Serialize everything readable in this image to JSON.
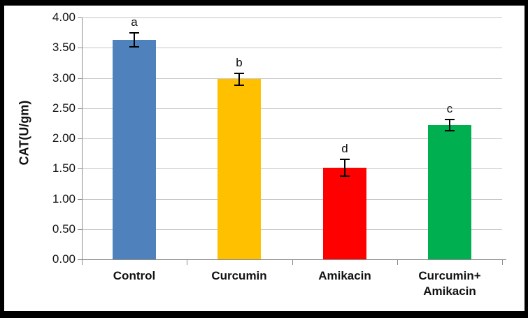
{
  "chart_data": {
    "type": "bar",
    "title": "",
    "xlabel": "",
    "ylabel": "CAT(U/gm)",
    "ylim": [
      0,
      4.0
    ],
    "grid": true,
    "legend": "none",
    "ytick_values": [
      0,
      0.5,
      1.0,
      1.5,
      2.0,
      2.5,
      3.0,
      3.5,
      4.0
    ],
    "ytick_labels": [
      "0.00",
      "0.50",
      "1.00",
      "1.50",
      "2.00",
      "2.50",
      "3.00",
      "3.50",
      "4.00"
    ],
    "categories": [
      "Control",
      "Curcumin",
      "Amikacin",
      "Curcumin+ Amikacin"
    ],
    "category_label_lines": [
      [
        "Control"
      ],
      [
        "Curcumin"
      ],
      [
        "Amikacin"
      ],
      [
        "Curcumin+",
        "Amikacin"
      ]
    ],
    "values": [
      3.63,
      2.98,
      1.51,
      2.22
    ],
    "error_bars": [
      0.12,
      0.1,
      0.14,
      0.09
    ],
    "significance_letters": [
      "a",
      "b",
      "d",
      "c"
    ],
    "bar_colors": [
      "#4f81bd",
      "#ffc000",
      "#ff0000",
      "#00b050"
    ],
    "colors": {
      "gridline": "#c6c6c6",
      "axis": "#8c8c8c",
      "error_bar": "#000000",
      "text": "#111111",
      "frame_border": "#000000",
      "background": "#ffffff"
    }
  }
}
